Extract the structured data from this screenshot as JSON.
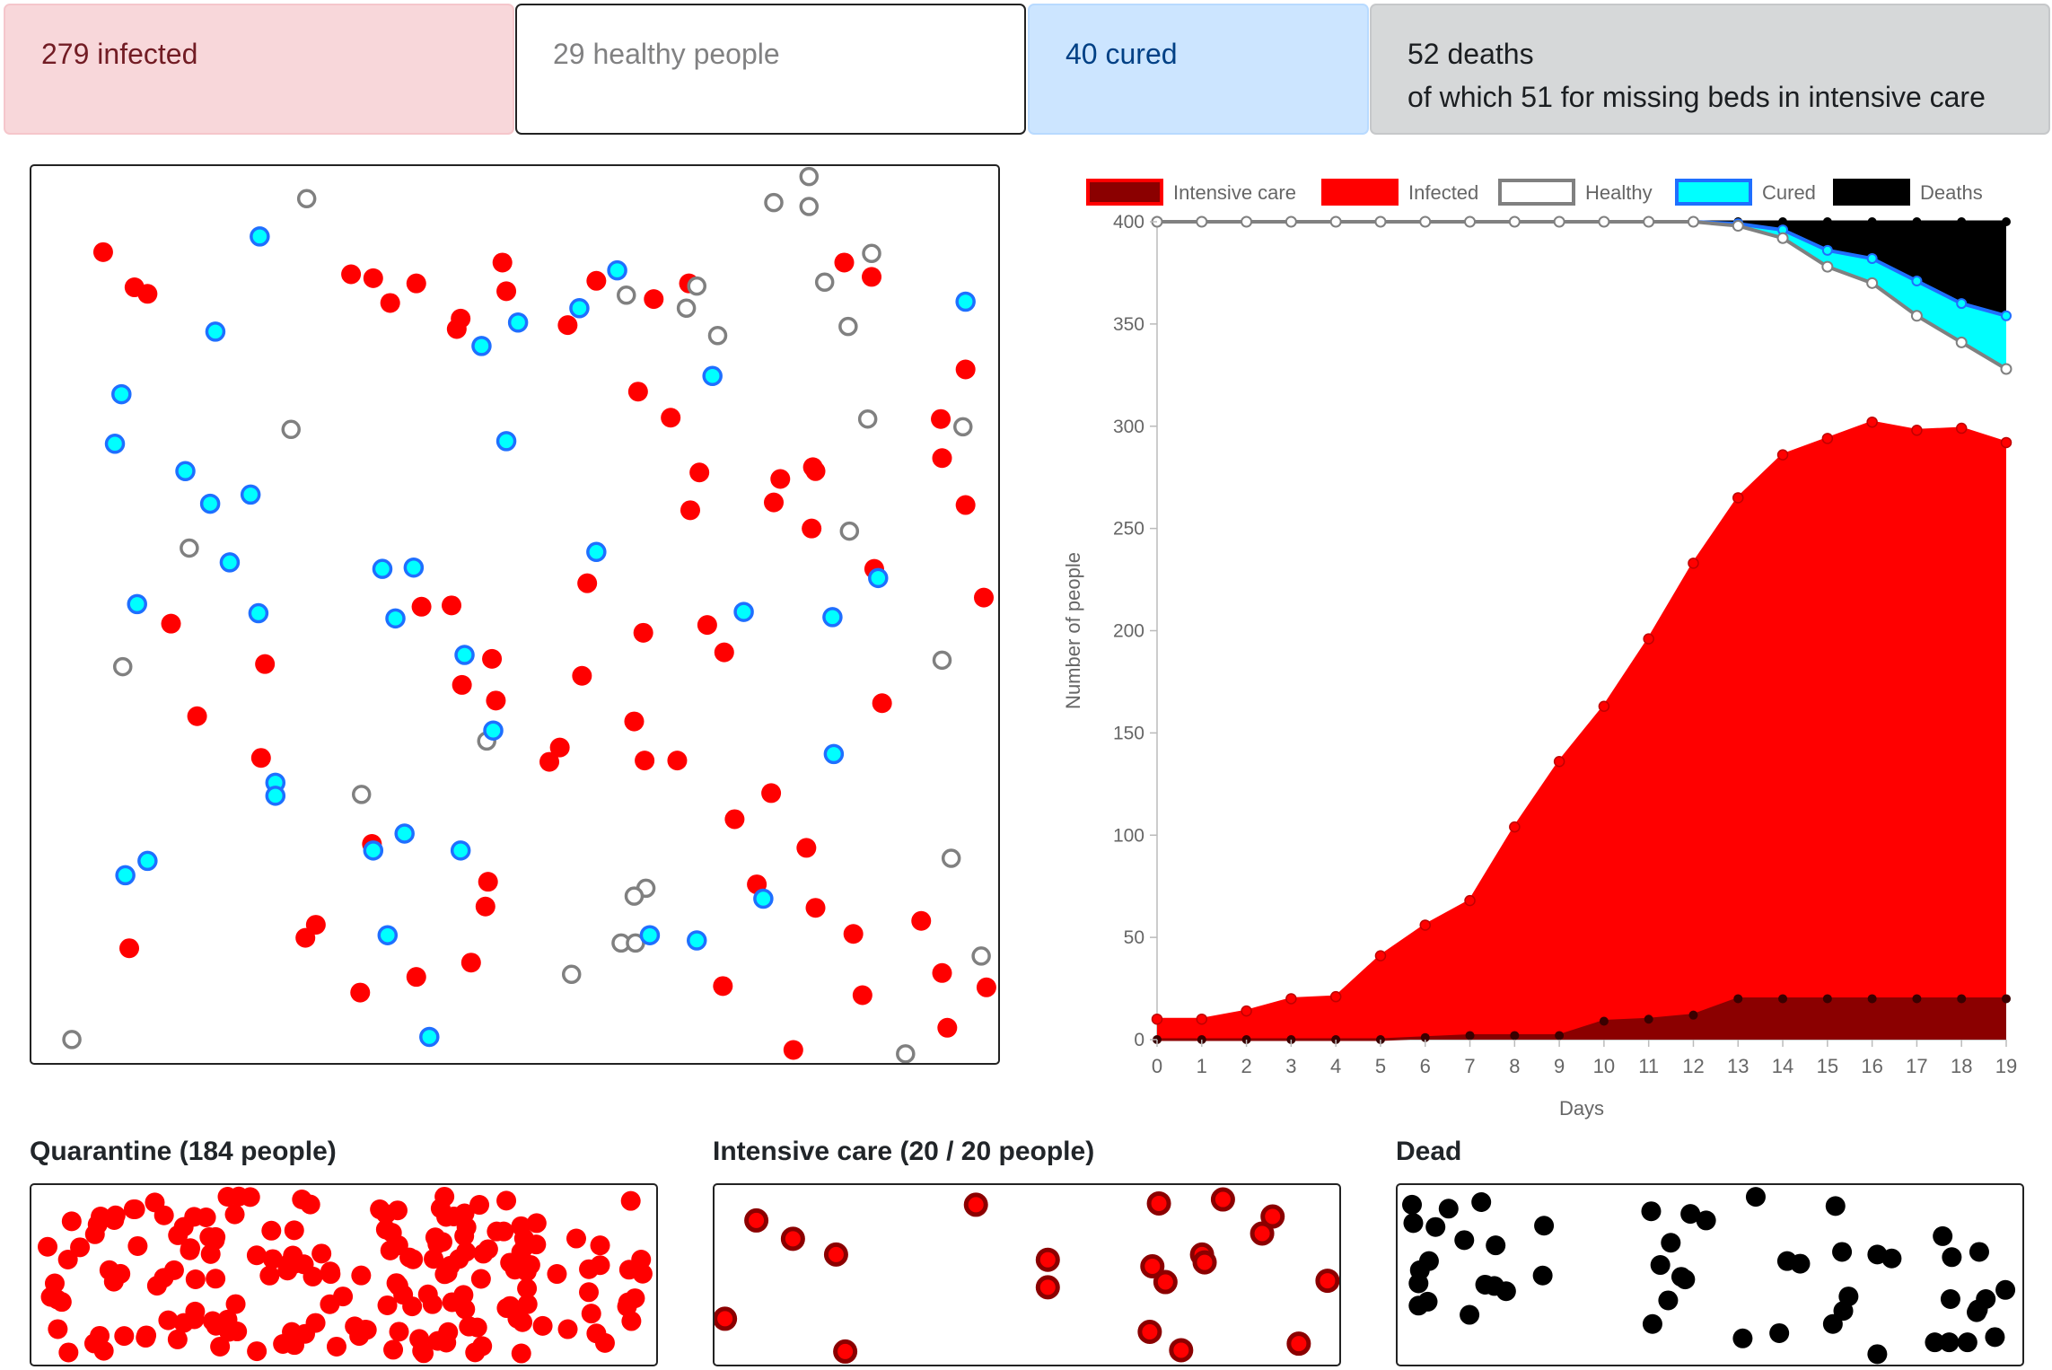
{
  "stats": {
    "infected": "279 infected",
    "healthy": "29 healthy people",
    "cured": "40 cured",
    "deaths_line1": "52 deaths",
    "deaths_line2": "of which 51 for missing beds in intensive care"
  },
  "colors": {
    "infected": "#ff0000",
    "intensive_care": "#8b0000",
    "healthy_stroke": "#808080",
    "cured_fill": "#00ffff",
    "cured_stroke": "#1f6fff",
    "deaths": "#000000"
  },
  "panels": {
    "quarantine_title": "Quarantine (184 people)",
    "intensive_title": "Intensive care (20 / 20 people)",
    "dead_title": "Dead"
  },
  "chart_data": {
    "type": "area",
    "stacked": true,
    "xlabel": "Days",
    "ylabel": "Number of people",
    "ylim": [
      0,
      400
    ],
    "yticks": [
      "0",
      "50",
      "100",
      "150",
      "200",
      "250",
      "300",
      "350",
      "400"
    ],
    "x": [
      "0",
      "1",
      "2",
      "3",
      "4",
      "5",
      "6",
      "7",
      "8",
      "9",
      "10",
      "11",
      "12",
      "13",
      "14",
      "15",
      "16",
      "17",
      "18",
      "19"
    ],
    "legend_position": "top",
    "series": [
      {
        "name": "Intensive care",
        "values": [
          0,
          0,
          0,
          0,
          0,
          0,
          1,
          2,
          2,
          2,
          9,
          10,
          12,
          20,
          20,
          20,
          20,
          20,
          20,
          20
        ]
      },
      {
        "name": "Infected",
        "values": [
          10,
          10,
          14,
          20,
          21,
          41,
          56,
          68,
          104,
          136,
          163,
          196,
          233,
          265,
          286,
          294,
          302,
          298,
          299,
          292
        ]
      },
      {
        "name": "Healthy",
        "values": [
          400,
          400,
          400,
          400,
          400,
          400,
          400,
          400,
          400,
          400,
          400,
          400,
          400,
          398,
          392,
          378,
          370,
          354,
          341,
          328
        ]
      },
      {
        "name": "Cured",
        "values": [
          400,
          400,
          400,
          400,
          400,
          400,
          400,
          400,
          400,
          400,
          400,
          400,
          400,
          399,
          396,
          386,
          382,
          371,
          360,
          354
        ]
      },
      {
        "name": "Deaths",
        "values": [
          400,
          400,
          400,
          400,
          400,
          400,
          400,
          400,
          400,
          400,
          400,
          400,
          400,
          400,
          400,
          400,
          400,
          400,
          400,
          400
        ]
      }
    ]
  }
}
